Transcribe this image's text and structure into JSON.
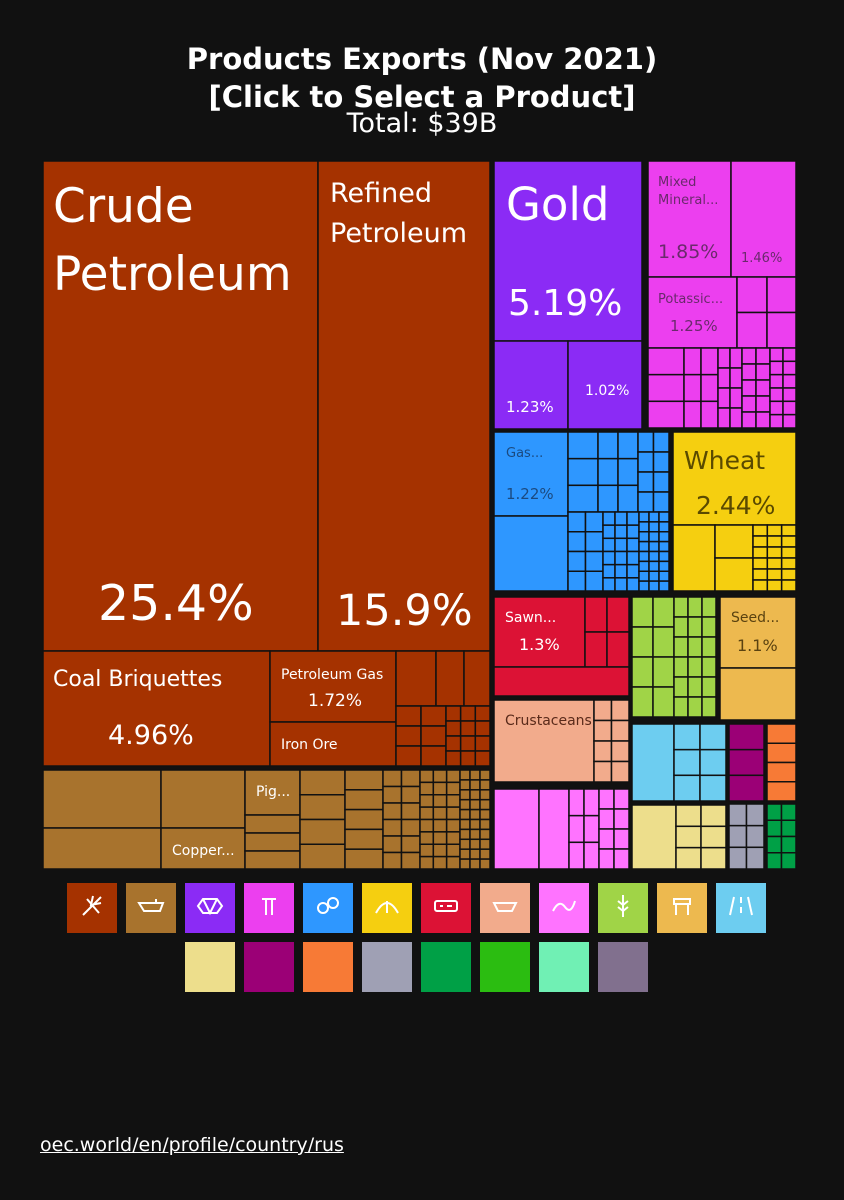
{
  "header": {
    "title": "Products Exports (Nov 2021)",
    "subtitle": "[Click to Select a Product]",
    "total": "Total: $39B"
  },
  "source": {
    "link": "oec.world/en/profile/country/rus"
  },
  "chart_data": {
    "type": "treemap",
    "unit": "% of total exports",
    "sections": [
      {
        "name": "Mineral Products",
        "color": "#A53200",
        "items": [
          {
            "label": "Crude Petroleum",
            "value": 25.4,
            "value_text": "25.4%"
          },
          {
            "label": "Refined Petroleum",
            "value": 15.9,
            "value_text": "15.9%"
          },
          {
            "label": "Coal Briquettes",
            "value": 4.96,
            "value_text": "4.96%"
          },
          {
            "label": "Petroleum Gas",
            "value": 1.72,
            "value_text": "1.72%"
          },
          {
            "label": "Iron Ore",
            "value_text": ""
          }
        ]
      },
      {
        "name": "Metals",
        "color": "#A8732D",
        "items": [
          {
            "label": "Pig...",
            "value_text": ""
          },
          {
            "label": "Copper...",
            "value_text": ""
          }
        ]
      },
      {
        "name": "Precious Metals",
        "color": "#8B2BF5",
        "items": [
          {
            "label": "Gold",
            "value": 5.19,
            "value_text": "5.19%"
          },
          {
            "label": "",
            "value": 1.23,
            "value_text": "1.23%"
          },
          {
            "label": "",
            "value": 1.02,
            "value_text": "1.02%"
          }
        ]
      },
      {
        "name": "Chemical Products",
        "color": "#EC3FEF",
        "items": [
          {
            "label": "Mixed Mineral...",
            "value": 1.85,
            "value_text": "1.85%"
          },
          {
            "label": "",
            "value": 1.46,
            "value_text": "1.46%"
          },
          {
            "label": "Potassic...",
            "value": 1.25,
            "value_text": "1.25%"
          }
        ]
      },
      {
        "name": "Machines",
        "color": "#2E97FF",
        "items": [
          {
            "label": "Gas...",
            "value": 1.22,
            "value_text": "1.22%"
          }
        ]
      },
      {
        "name": "Vegetable Products",
        "color": "#F5CF10",
        "items": [
          {
            "label": "Wheat",
            "value": 2.44,
            "value_text": "2.44%"
          }
        ]
      },
      {
        "name": "Wood Products",
        "color": "#DC1235",
        "items": [
          {
            "label": "Sawn...",
            "value": 1.3,
            "value_text": "1.3%"
          }
        ]
      },
      {
        "name": "Animal Products",
        "color": "#F2AB8C",
        "items": [
          {
            "label": "Crustaceans",
            "value_text": ""
          }
        ]
      },
      {
        "name": "Plastics and Rubbers",
        "color": "#FF73FF",
        "items": []
      },
      {
        "name": "Foodstuffs",
        "color": "#A0D447",
        "items": []
      },
      {
        "name": "Animal and Vegetable Bi-Products",
        "color": "#EDB94F",
        "items": [
          {
            "label": "Seed...",
            "value": 1.1,
            "value_text": "1.1%"
          }
        ]
      },
      {
        "name": "Transportation",
        "color": "#6DCDF0",
        "items": []
      },
      {
        "name": "Paper Goods",
        "color": "#EDDE8C",
        "items": []
      },
      {
        "name": "Weapons",
        "color": "#9B0076",
        "items": []
      },
      {
        "name": "Textiles",
        "color": "#F77A36",
        "items": []
      },
      {
        "name": "Instruments",
        "color": "#9FA0B4",
        "items": []
      },
      {
        "name": "Stone And Glass",
        "color": "#00A046",
        "items": []
      }
    ],
    "legend": [
      {
        "color": "#A53200",
        "icon": "mineral-products-icon"
      },
      {
        "color": "#A8732D",
        "icon": "metals-icon"
      },
      {
        "color": "#8B2BF5",
        "icon": "precious-metals-icon"
      },
      {
        "color": "#EC3FEF",
        "icon": "chemical-products-icon"
      },
      {
        "color": "#2E97FF",
        "icon": "machines-icon"
      },
      {
        "color": "#F5CF10",
        "icon": "vegetable-products-icon"
      },
      {
        "color": "#DC1235",
        "icon": "wood-products-icon"
      },
      {
        "color": "#F2AB8C",
        "icon": "animal-products-icon"
      },
      {
        "color": "#FF73FF",
        "icon": "plastics-and-rubbers-icon"
      },
      {
        "color": "#A0D447",
        "icon": "foodstuffs-icon"
      },
      {
        "color": "#EDB94F",
        "icon": "animal-and-vegetable-bi-products-icon"
      },
      {
        "color": "#6DCDF0",
        "icon": "transportation-icon"
      },
      {
        "color": "#EDDE8C",
        "icon": "paper-goods-icon"
      },
      {
        "color": "#9B0076",
        "icon": "weapons-icon"
      },
      {
        "color": "#F77A36",
        "icon": "textiles-icon"
      },
      {
        "color": "#9FA0B4",
        "icon": "instruments-icon"
      },
      {
        "color": "#00A046",
        "icon": "stone-and-glass-icon"
      },
      {
        "color": "#2BBD11",
        "icon": "footwear-and-headwear-icon"
      },
      {
        "color": "#70F0B4",
        "icon": "animal-hides-icon"
      },
      {
        "color": "#81708E",
        "icon": "miscellaneous-icon"
      }
    ]
  }
}
